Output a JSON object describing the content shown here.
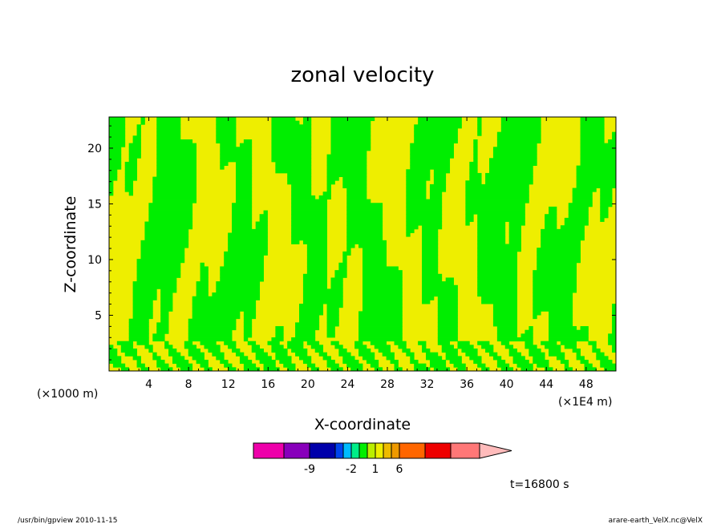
{
  "chart_data": {
    "type": "heatmap",
    "title": "zonal velocity",
    "xlabel": "X-coordinate",
    "ylabel": "Z-coordinate",
    "x_units": "(×1000 m)",
    "x_scale_note": "(×1E4 m)",
    "xlim": [
      0,
      51
    ],
    "ylim": [
      0,
      22.8
    ],
    "x_ticks": [
      4,
      8,
      12,
      16,
      20,
      24,
      28,
      32,
      36,
      40,
      44,
      48
    ],
    "y_ticks": [
      5,
      10,
      15,
      20
    ],
    "shading_colors": {
      "negative": "#00ee00",
      "positive": "#eeee00"
    },
    "colorbar": {
      "colors": [
        "#ee00aa",
        "#8800bb",
        "#0000aa",
        "#0044ee",
        "#00bbff",
        "#00ee88",
        "#00ee00",
        "#bbee00",
        "#eeee00",
        "#eebb00",
        "#ee9900",
        "#ff6600",
        "#ee0000",
        "#ff7777"
      ],
      "extend_color": "#ffbbbb",
      "labels": [
        {
          "text": "-9",
          "after_index": 1
        },
        {
          "text": "-2",
          "after_index": 4
        },
        {
          "text": "1",
          "after_index": 7
        },
        {
          "text": "6",
          "after_index": 10
        }
      ]
    },
    "grid": false
  },
  "time_label": "t=16800 s",
  "footer": {
    "left": "/usr/bin/gpview   2010-11-15",
    "right": "arare-earth_VelX.nc@VelX"
  }
}
